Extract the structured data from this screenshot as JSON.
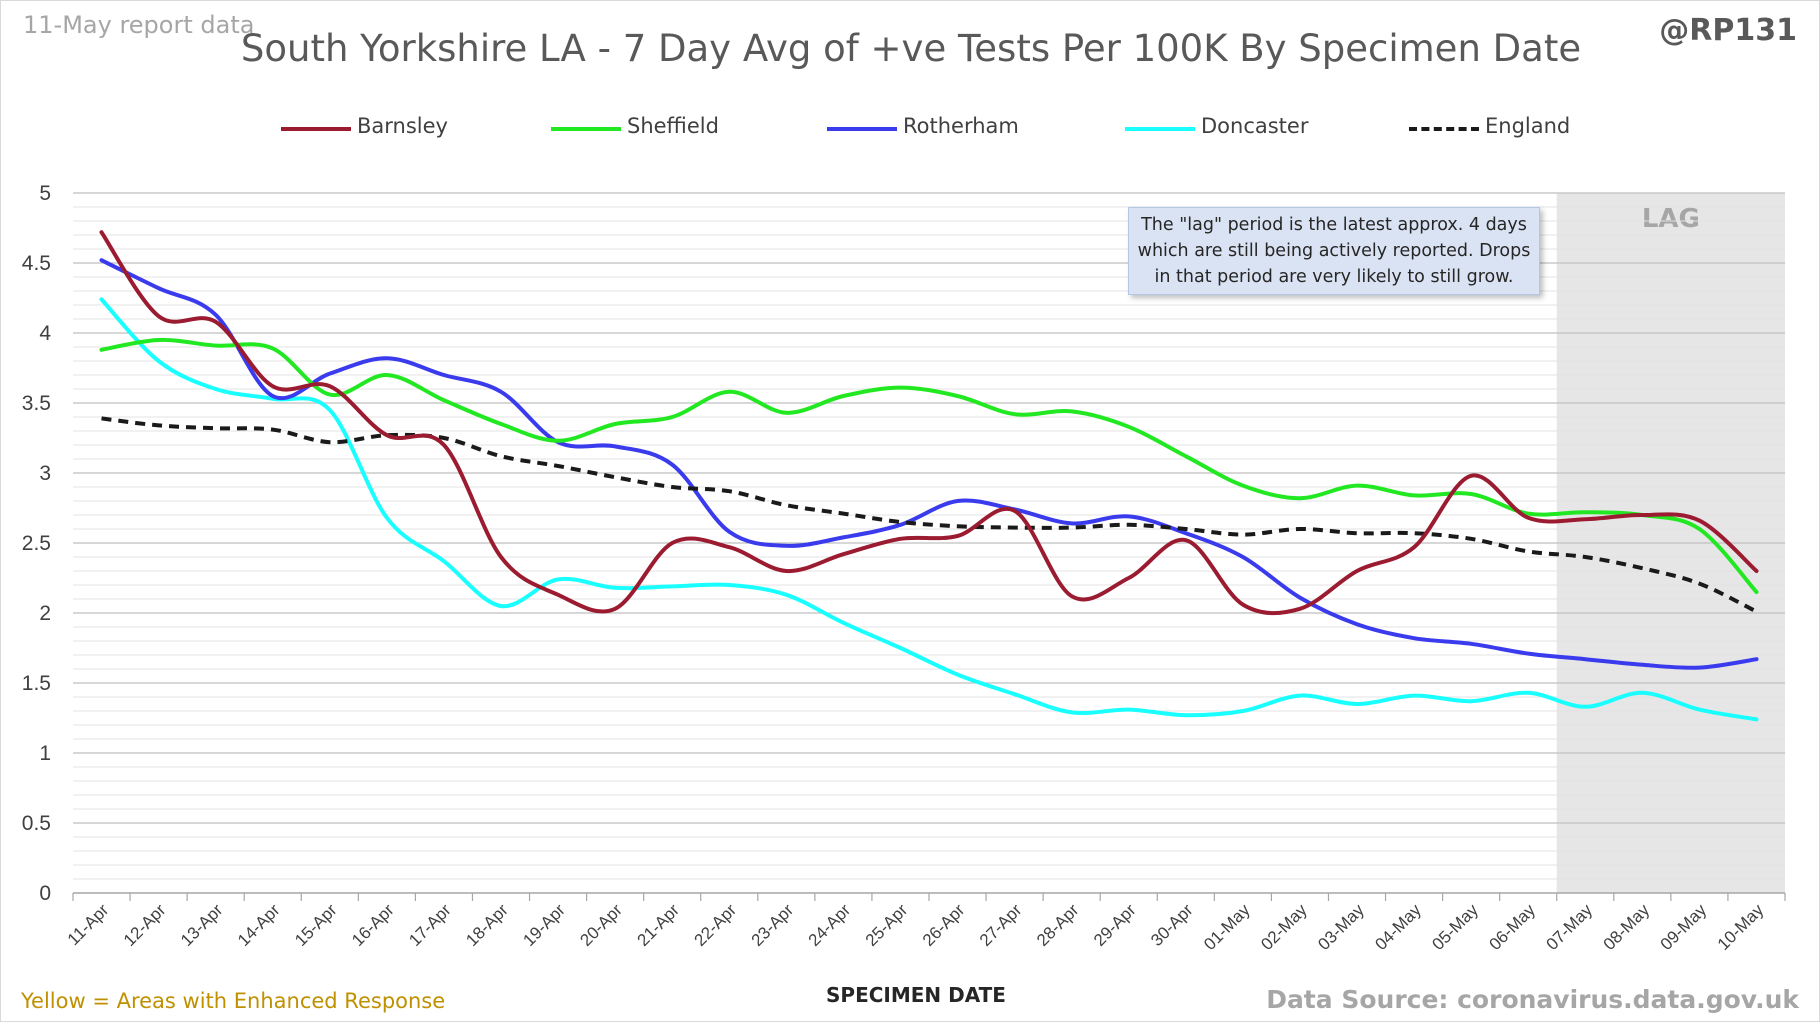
{
  "header": {
    "report_note": "11-May report data",
    "handle": "@RP131",
    "title": "South Yorkshire LA - 7 Day Avg of +ve Tests Per 100K By Specimen Date"
  },
  "annotation": "The \"lag\" period is the latest approx. 4 days which are still being actively reported. Drops in that period are very likely to still grow.",
  "lag_label": "LAG",
  "footer": {
    "x_axis_title": "SPECIMEN DATE",
    "footnote": "Yellow = Areas with Enhanced Response",
    "source": "Data Source: coronavirus.data.gov.uk"
  },
  "colors": {
    "Barnsley": "#9b1b30",
    "Sheffield": "#22e822",
    "Rotherham": "#3b3bee",
    "Doncaster": "#19ffff",
    "England": "#1a1a1a",
    "lag_shade": "#e6e6e6",
    "footnote": "#bf9000"
  },
  "chart_data": {
    "type": "line",
    "title": "South Yorkshire LA - 7 Day Avg of +ve Tests Per 100K By Specimen Date",
    "xlabel": "SPECIMEN DATE",
    "ylabel": "",
    "ylim": [
      0,
      5
    ],
    "yticks": [
      "0",
      "0.5",
      "1",
      "1.5",
      "2",
      "2.5",
      "3",
      "3.5",
      "4",
      "4.5",
      "5"
    ],
    "grid": true,
    "legend_position": "top",
    "categories": [
      "11-Apr",
      "12-Apr",
      "13-Apr",
      "14-Apr",
      "15-Apr",
      "16-Apr",
      "17-Apr",
      "18-Apr",
      "19-Apr",
      "20-Apr",
      "21-Apr",
      "22-Apr",
      "23-Apr",
      "24-Apr",
      "25-Apr",
      "26-Apr",
      "27-Apr",
      "28-Apr",
      "29-Apr",
      "30-Apr",
      "01-May",
      "02-May",
      "03-May",
      "04-May",
      "05-May",
      "06-May",
      "07-May",
      "08-May",
      "09-May",
      "10-May"
    ],
    "lag_period": [
      "07-May",
      "10-May"
    ],
    "series": [
      {
        "name": "Barnsley",
        "values": [
          4.72,
          4.12,
          4.08,
          3.62,
          3.62,
          3.27,
          3.2,
          2.4,
          2.13,
          2.03,
          2.5,
          2.47,
          2.3,
          2.42,
          2.53,
          2.55,
          2.73,
          2.12,
          2.25,
          2.52,
          2.06,
          2.03,
          2.3,
          2.47,
          2.98,
          2.68,
          2.67,
          2.7,
          2.66,
          2.3
        ]
      },
      {
        "name": "Sheffield",
        "values": [
          3.88,
          3.95,
          3.91,
          3.89,
          3.56,
          3.7,
          3.52,
          3.35,
          3.23,
          3.35,
          3.4,
          3.58,
          3.43,
          3.55,
          3.61,
          3.55,
          3.42,
          3.44,
          3.33,
          3.12,
          2.91,
          2.82,
          2.91,
          2.84,
          2.85,
          2.71,
          2.72,
          2.7,
          2.6,
          2.15
        ]
      },
      {
        "name": "Rotherham",
        "values": [
          4.52,
          4.32,
          4.13,
          3.55,
          3.71,
          3.82,
          3.7,
          3.58,
          3.22,
          3.19,
          3.06,
          2.58,
          2.48,
          2.54,
          2.63,
          2.8,
          2.74,
          2.64,
          2.69,
          2.57,
          2.4,
          2.11,
          1.92,
          1.82,
          1.78,
          1.71,
          1.67,
          1.63,
          1.61,
          1.67
        ]
      },
      {
        "name": "Doncaster",
        "values": [
          4.24,
          3.8,
          3.6,
          3.53,
          3.45,
          2.68,
          2.37,
          2.05,
          2.24,
          2.18,
          2.19,
          2.2,
          2.13,
          1.93,
          1.75,
          1.56,
          1.42,
          1.29,
          1.31,
          1.27,
          1.3,
          1.41,
          1.35,
          1.41,
          1.37,
          1.43,
          1.33,
          1.43,
          1.31,
          1.24
        ]
      },
      {
        "name": "England",
        "values": [
          3.39,
          3.34,
          3.32,
          3.31,
          3.22,
          3.27,
          3.25,
          3.12,
          3.05,
          2.97,
          2.9,
          2.87,
          2.77,
          2.71,
          2.65,
          2.62,
          2.61,
          2.61,
          2.63,
          2.6,
          2.56,
          2.6,
          2.57,
          2.57,
          2.53,
          2.44,
          2.4,
          2.32,
          2.21,
          2.01
        ],
        "style": "dashed"
      }
    ]
  }
}
